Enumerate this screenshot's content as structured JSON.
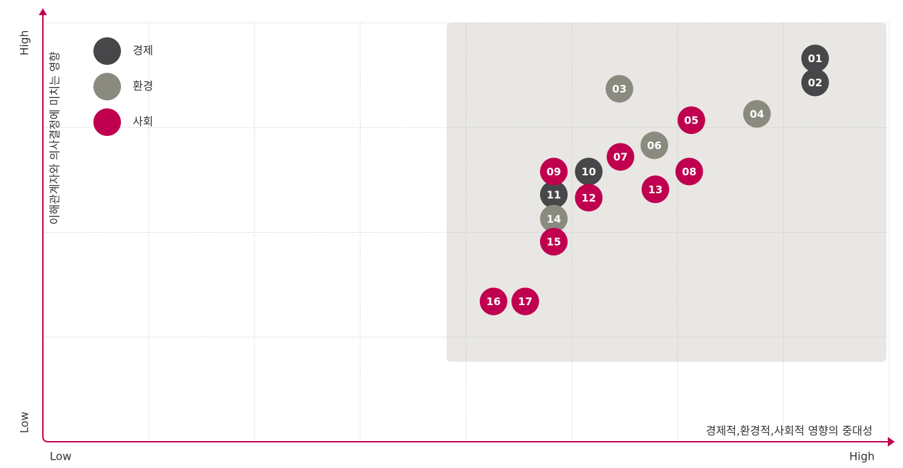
{
  "chart_data": {
    "type": "scatter",
    "x_title": "경제적,환경적,사회적 영향의 중대성",
    "y_title": "이해관계자와 의사결정에 미치는 영향",
    "x_low": "Low",
    "x_high": "High",
    "y_low": "Low",
    "y_high": "High",
    "xlim": [
      0,
      8
    ],
    "ylim": [
      0,
      4
    ],
    "xgrid": [
      1,
      2,
      3,
      4,
      5,
      6,
      7,
      8
    ],
    "ygrid": [
      1,
      2,
      3,
      4
    ],
    "grid": true,
    "legend": "upper left",
    "axis_color": "#c0004f",
    "series": [
      {
        "name": "경제",
        "color": "#47474a",
        "labels": [
          "01",
          "02",
          "10",
          "11"
        ],
        "x": [
          7.3,
          7.3,
          5.16,
          4.83
        ],
        "y": [
          3.66,
          3.43,
          2.58,
          2.36
        ]
      },
      {
        "name": "환경",
        "color": "#8a8a7e",
        "labels": [
          "03",
          "04",
          "06",
          "14"
        ],
        "x": [
          5.45,
          6.75,
          5.78,
          4.83
        ],
        "y": [
          3.37,
          3.13,
          2.83,
          2.13
        ]
      },
      {
        "name": "사회",
        "color": "#c0004f",
        "labels": [
          "05",
          "07",
          "08",
          "09",
          "12",
          "13",
          "15",
          "16",
          "17"
        ],
        "x": [
          6.13,
          5.46,
          6.11,
          4.83,
          5.16,
          5.79,
          4.83,
          4.26,
          4.56
        ],
        "y": [
          3.07,
          2.72,
          2.58,
          2.58,
          2.33,
          2.41,
          1.91,
          1.34,
          1.34
        ]
      }
    ]
  }
}
